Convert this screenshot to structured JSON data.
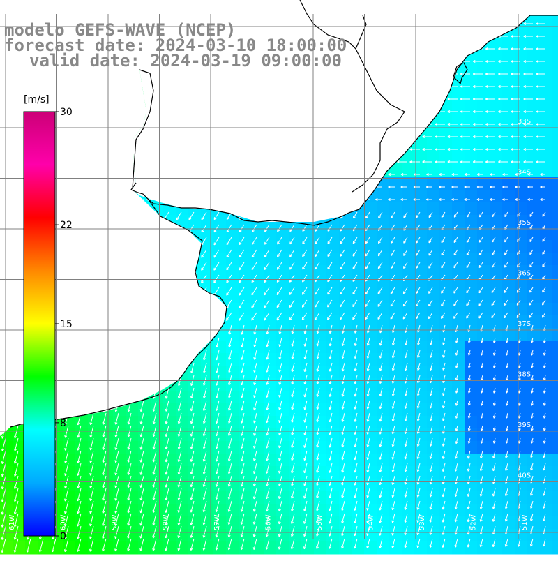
{
  "title": {
    "line1": "modelo GEFS-WAVE (NCEP)",
    "line2": "forecast date: 2024-03-10 18:00:00",
    "line3": "valid date: 2024-03-19 09:00:00"
  },
  "colorbar": {
    "unit": "[m/s]",
    "ticks": [
      {
        "value": 30,
        "label": "30"
      },
      {
        "value": 22,
        "label": "22"
      },
      {
        "value": 15,
        "label": "15"
      },
      {
        "value": 8,
        "label": "8"
      },
      {
        "value": 0,
        "label": "0"
      }
    ],
    "range": [
      0,
      30
    ],
    "colors": [
      "#0000ff",
      "#00aaff",
      "#00ffff",
      "#00ff00",
      "#ffff00",
      "#ff8800",
      "#ff0000",
      "#ff00aa",
      "#cc0077"
    ]
  },
  "map": {
    "lat_labels": [
      "33S",
      "34S",
      "35S",
      "36S",
      "37S",
      "38S",
      "39S",
      "40S"
    ],
    "lon_labels": [
      "61W",
      "60W",
      "59W",
      "58W",
      "57W",
      "56W",
      "55W",
      "54W",
      "53W",
      "52W",
      "51W"
    ],
    "colors": {
      "land": "#ffffff",
      "coast": "#000000",
      "grid": "#808080",
      "arrow": "#ffffff"
    }
  }
}
